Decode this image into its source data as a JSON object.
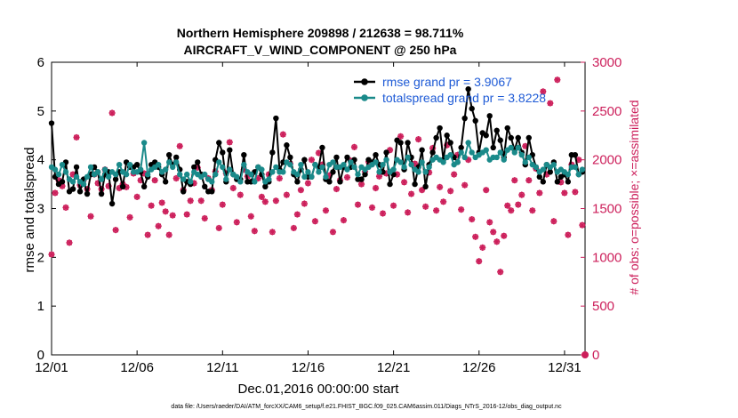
{
  "chart_data": {
    "type": "line",
    "title": "Northern Hemisphere 209898 / 212638 = 98.711%",
    "subtitle": "AIRCRAFT_V_WIND_COMPONENT @ 250 hPa",
    "xlabel": "Dec.01,2016 00:00:00 start",
    "ylabel": "rmse and totalspread",
    "y2label": "# of obs: o=possible; ×=assimilated",
    "footnote": "data file: /Users/raeder/DAI/ATM_forcXX/CAM6_setup/f.e21.FHIST_BGC.f09_025.CAM6assim.011/Diags_NTrS_2016-12/obs_diag_output.nc",
    "xlim": [
      1,
      32.2
    ],
    "ylim": [
      0,
      6
    ],
    "y2lim": [
      0,
      3000
    ],
    "xticks": [
      1,
      6,
      11,
      16,
      21,
      26,
      31
    ],
    "xtick_labels": [
      "12/01",
      "12/06",
      "12/11",
      "12/16",
      "12/21",
      "12/26",
      "12/31"
    ],
    "yticks": [
      "0",
      "1",
      "2",
      "3",
      "4",
      "5",
      "6"
    ],
    "y2ticks": [
      "0",
      "500",
      "1000",
      "1500",
      "2000",
      "2500",
      "3000"
    ],
    "legend_location": "top-right",
    "series": [
      {
        "name": "rmse grand pr = 3.9067",
        "color": "#000000",
        "values": [
          4.75,
          3.65,
          3.5,
          3.55,
          3.95,
          3.35,
          3.4,
          3.85,
          3.35,
          3.6,
          3.3,
          3.7,
          3.85,
          3.75,
          3.3,
          3.7,
          3.75,
          3.1,
          3.6,
          3.75,
          3.45,
          3.95,
          3.85,
          3.85,
          3.9,
          3.75,
          3.45,
          3.65,
          3.9,
          3.95,
          3.85,
          3.7,
          3.55,
          4.1,
          3.9,
          4.05,
          3.8,
          3.35,
          3.55,
          3.5,
          3.85,
          3.95,
          3.7,
          3.45,
          3.35,
          3.35,
          4.0,
          4.35,
          4.15,
          3.55,
          4.2,
          3.7,
          3.6,
          3.6,
          4.1,
          3.55,
          3.55,
          3.75,
          3.85,
          3.7,
          3.45,
          3.55,
          4.15,
          4.85,
          3.8,
          3.95,
          4.3,
          4.05,
          3.7,
          3.55,
          3.8,
          4.0,
          3.65,
          3.65,
          3.9,
          3.85,
          4.25,
          3.6,
          3.55,
          3.75,
          4.05,
          3.55,
          3.85,
          4.05,
          3.85,
          4.0,
          3.6,
          3.6,
          3.7,
          4.0,
          3.95,
          4.1,
          3.9,
          3.75,
          4.15,
          3.5,
          3.7,
          4.4,
          4.35,
          3.8,
          4.35,
          4.05,
          3.5,
          3.85,
          4.2,
          3.45,
          3.9,
          4.15,
          4.45,
          4.65,
          4.0,
          4.5,
          4.35,
          4.05,
          3.95,
          4.25,
          4.85,
          5.45,
          5.05,
          4.8,
          4.15,
          4.55,
          4.5,
          4.9,
          4.25,
          4.6,
          4.4,
          4.05,
          4.65,
          4.45,
          4.2,
          4.45,
          4.15,
          3.9,
          4.45,
          4.1,
          3.85,
          3.65,
          3.55,
          3.9,
          3.75,
          3.95,
          3.55,
          3.65,
          3.7,
          3.55,
          4.1,
          4.1,
          3.7,
          3.75
        ],
        "x_start": 1.0,
        "x_step": 0.2083
      },
      {
        "name": "totalspread grand pr = 3.8228",
        "color": "#1a8a8a",
        "values": [
          3.85,
          3.8,
          3.7,
          3.9,
          3.75,
          3.6,
          3.55,
          3.65,
          3.55,
          3.5,
          3.65,
          3.85,
          3.7,
          3.75,
          3.6,
          3.8,
          3.65,
          3.75,
          3.7,
          3.9,
          3.75,
          3.7,
          3.9,
          3.75,
          3.75,
          3.8,
          4.35,
          3.7,
          3.8,
          3.85,
          3.9,
          3.75,
          3.8,
          3.95,
          3.85,
          3.95,
          3.7,
          3.6,
          3.7,
          3.55,
          3.75,
          3.7,
          3.65,
          3.7,
          3.6,
          3.55,
          3.7,
          3.95,
          3.85,
          3.6,
          3.8,
          3.7,
          3.65,
          3.55,
          3.9,
          3.75,
          3.7,
          3.55,
          3.85,
          3.8,
          3.55,
          3.6,
          3.75,
          3.85,
          3.75,
          3.75,
          3.95,
          3.9,
          3.75,
          3.7,
          3.9,
          3.65,
          3.75,
          3.65,
          3.9,
          3.75,
          3.85,
          3.65,
          3.9,
          3.95,
          3.85,
          3.85,
          3.9,
          3.8,
          3.95,
          3.85,
          3.7,
          3.85,
          3.8,
          3.85,
          3.9,
          3.95,
          3.75,
          3.9,
          4.0,
          3.75,
          3.8,
          4.0,
          3.95,
          3.85,
          4.05,
          3.9,
          3.8,
          3.75,
          3.95,
          3.75,
          3.85,
          4.0,
          4.05,
          4.0,
          3.95,
          4.05,
          4.1,
          3.9,
          3.95,
          4.15,
          4.05,
          4.35,
          4.15,
          4.05,
          4.1,
          4.15,
          4.2,
          4.0,
          4.05,
          4.05,
          4.15,
          4.0,
          4.2,
          4.25,
          4.15,
          4.25,
          4.1,
          3.95,
          4.05,
          3.9,
          3.85,
          3.75,
          3.8,
          3.9,
          3.85,
          3.9,
          3.75,
          3.8,
          3.75,
          3.7,
          3.85,
          3.85,
          3.7,
          3.8
        ],
        "x_start": 1.0,
        "x_step": 0.2083
      }
    ],
    "obs_points": {
      "color": "#cc1e5a",
      "x_start": 1.0,
      "x_step": 0.2083,
      "values": [
        1030,
        1660,
        1790,
        1730,
        1510,
        1150,
        1850,
        2230,
        1740,
        1790,
        1700,
        1420,
        1850,
        1760,
        1700,
        1900,
        1730,
        2480,
        1280,
        1710,
        1750,
        1720,
        1410,
        1860,
        1620,
        1790,
        1860,
        1230,
        1530,
        1790,
        1320,
        1560,
        1470,
        1230,
        1430,
        1810,
        2140,
        1690,
        1440,
        1580,
        1760,
        1920,
        1580,
        1400,
        1810,
        1690,
        1880,
        1300,
        1540,
        1860,
        2180,
        1710,
        1360,
        1640,
        1900,
        1830,
        1420,
        1270,
        1810,
        1620,
        1570,
        1850,
        1260,
        1580,
        1810,
        2260,
        1640,
        1960,
        1300,
        1440,
        1690,
        1550,
        1760,
        2000,
        1370,
        2070,
        1950,
        1480,
        1840,
        1260,
        1700,
        1790,
        1380,
        1820,
        1990,
        2130,
        1540,
        1750,
        1880,
        1980,
        1510,
        1710,
        1830,
        1450,
        1860,
        2100,
        1530,
        1850,
        2240,
        1770,
        1460,
        1650,
        1960,
        2210,
        1690,
        1520,
        1870,
        2120,
        1480,
        1720,
        1570,
        2150,
        1680,
        1850,
        2050,
        1490,
        1740,
        2000,
        1390,
        1210,
        960,
        1100,
        1690,
        1360,
        1260,
        1160,
        850,
        1220,
        1530,
        1480,
        1790,
        1540,
        1640,
        2140,
        1790,
        1480,
        1910,
        1660,
        2700,
        1850,
        2580,
        1370,
        2820,
        1770,
        1660,
        1230,
        1950,
        1670,
        2000,
        1330
      ]
    }
  }
}
